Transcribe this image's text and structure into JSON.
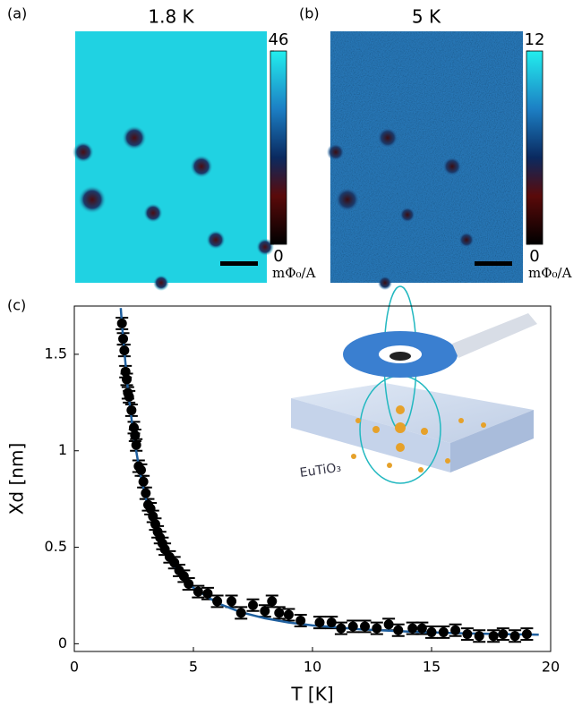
{
  "panels": [
    {
      "label": "(a)",
      "title": "1.8 K",
      "clim": [
        0,
        46
      ],
      "colorbar_ticks": [
        0,
        46
      ],
      "colorbar_unit": "mΦ₀/A"
    },
    {
      "label": "(b)",
      "title": "5 K",
      "clim": [
        0,
        12
      ],
      "colorbar_ticks": [
        0,
        12
      ],
      "colorbar_unit": "mΦ₀/A"
    }
  ],
  "chart_data": {
    "type": "scatter",
    "label": "(c)",
    "xlabel": "T [K]",
    "ylabel": "Xd [nm]",
    "annotation": "EuTiO₃",
    "xlim": [
      0,
      20
    ],
    "xticks": [
      0,
      5,
      10,
      15,
      20
    ],
    "ylim": [
      -0.04,
      1.75
    ],
    "yticks": [
      0,
      0.5,
      1,
      1.5
    ],
    "series": [
      {
        "color": "#000000",
        "x": [
          2.0,
          2.05,
          2.1,
          2.15,
          2.2,
          2.25,
          2.3,
          2.4,
          2.5,
          2.55,
          2.6,
          2.7,
          2.8,
          2.9,
          3.0,
          3.1,
          3.2,
          3.3,
          3.4,
          3.5,
          3.6,
          3.7,
          3.8,
          4.0,
          4.2,
          4.4,
          4.6,
          4.8,
          5.2,
          5.6,
          6.0,
          6.6,
          7.0,
          7.5,
          8.0,
          8.3,
          8.6,
          9.0,
          9.5,
          10.3,
          10.8,
          11.2,
          11.7,
          12.2,
          12.7,
          13.2,
          13.6,
          14.2,
          14.6,
          15.0,
          15.5,
          16.0,
          16.5,
          17.0,
          17.6,
          18.0,
          18.5,
          19.0
        ],
        "values": [
          1.66,
          1.58,
          1.52,
          1.41,
          1.37,
          1.3,
          1.28,
          1.21,
          1.12,
          1.08,
          1.03,
          0.92,
          0.9,
          0.84,
          0.78,
          0.72,
          0.7,
          0.66,
          0.62,
          0.58,
          0.55,
          0.52,
          0.49,
          0.45,
          0.42,
          0.38,
          0.35,
          0.31,
          0.27,
          0.26,
          0.22,
          0.22,
          0.16,
          0.2,
          0.17,
          0.22,
          0.16,
          0.15,
          0.12,
          0.11,
          0.11,
          0.08,
          0.09,
          0.09,
          0.08,
          0.1,
          0.07,
          0.08,
          0.08,
          0.06,
          0.06,
          0.07,
          0.05,
          0.04,
          0.04,
          0.05,
          0.04,
          0.05
        ],
        "errors": [
          0.03,
          0.03,
          0.03,
          0.03,
          0.03,
          0.03,
          0.03,
          0.03,
          0.03,
          0.03,
          0.03,
          0.03,
          0.03,
          0.03,
          0.03,
          0.03,
          0.03,
          0.03,
          0.03,
          0.03,
          0.03,
          0.03,
          0.03,
          0.03,
          0.03,
          0.03,
          0.03,
          0.03,
          0.03,
          0.03,
          0.03,
          0.03,
          0.03,
          0.03,
          0.03,
          0.03,
          0.03,
          0.03,
          0.03,
          0.03,
          0.03,
          0.03,
          0.03,
          0.03,
          0.03,
          0.03,
          0.03,
          0.03,
          0.03,
          0.03,
          0.03,
          0.03,
          0.03,
          0.03,
          0.03,
          0.03,
          0.03,
          0.03
        ]
      }
    ],
    "fit": {
      "color": "#1f5f9e",
      "x": [
        1.95,
        2,
        2.25,
        2.5,
        2.75,
        3,
        3.5,
        4,
        4.5,
        5,
        6,
        7,
        8,
        9,
        10,
        12,
        14,
        16,
        18,
        19.5
      ],
      "values": [
        1.74,
        1.655,
        1.314,
        1.07,
        0.89,
        0.752,
        0.561,
        0.436,
        0.351,
        0.29,
        0.211,
        0.163,
        0.132,
        0.11,
        0.095,
        0.075,
        0.063,
        0.055,
        0.05,
        0.047
      ]
    }
  }
}
